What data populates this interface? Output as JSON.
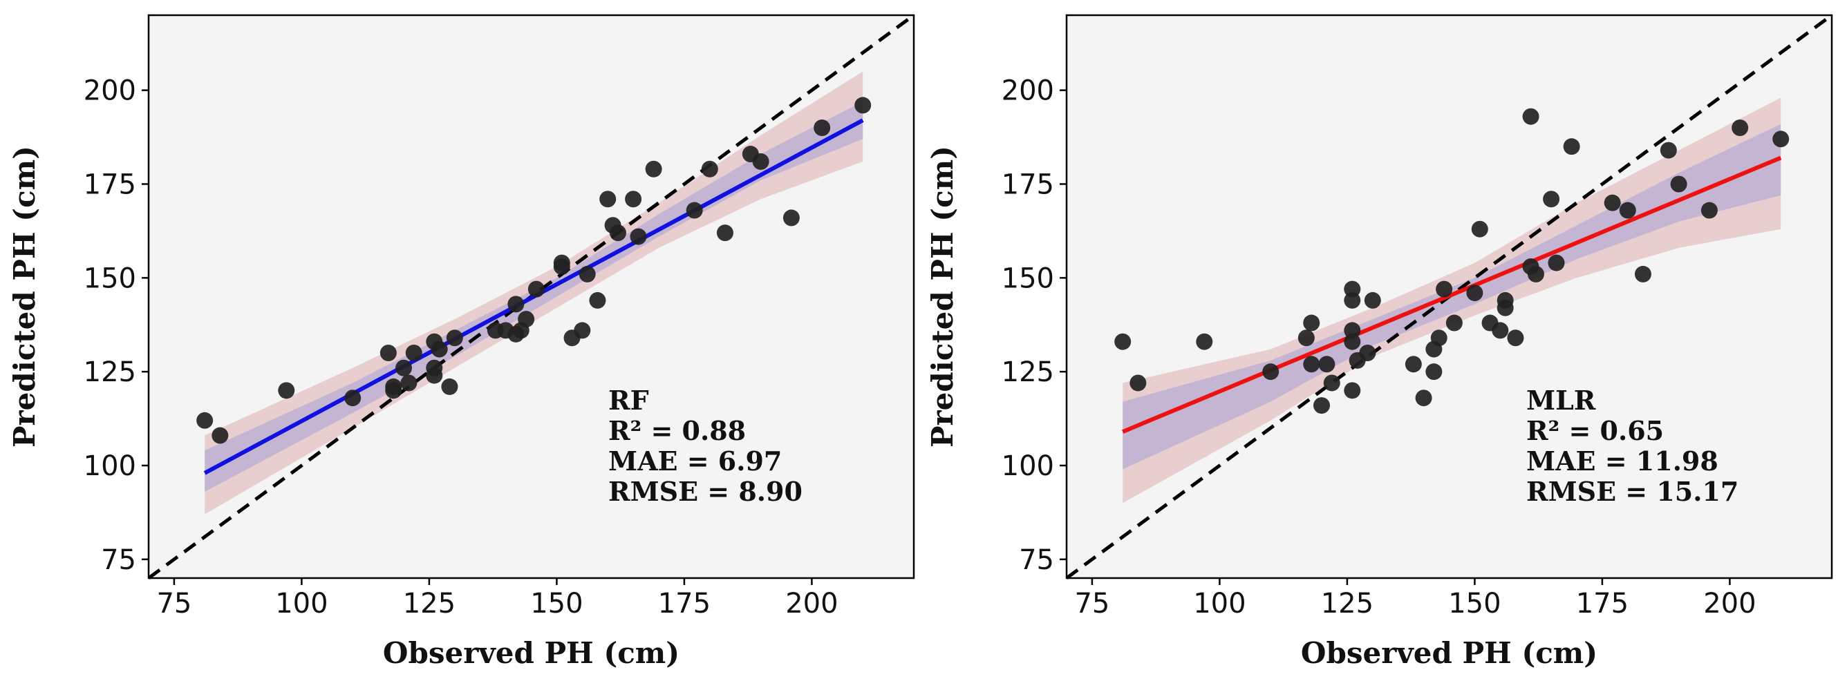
{
  "chart_data": [
    {
      "type": "scatter",
      "model": "RF",
      "xlabel": "Observed PH (cm)",
      "ylabel": "Predicted PH (cm)",
      "xlim": [
        70,
        220
      ],
      "ylim": [
        70,
        220
      ],
      "xticks": [
        75,
        100,
        125,
        150,
        175,
        200
      ],
      "yticks": [
        75,
        100,
        125,
        150,
        175,
        200
      ],
      "xtick_labels": [
        "75",
        "100",
        "125",
        "150",
        "175",
        "200"
      ],
      "ytick_labels": [
        "75",
        "100",
        "125",
        "150",
        "175",
        "200"
      ],
      "stats": [
        "RF",
        "R² = 0.88",
        "MAE = 6.97",
        "RMSE = 8.90"
      ],
      "fit_line": {
        "color": "#1010e0",
        "x": [
          81,
          210
        ],
        "y": [
          98,
          192
        ]
      },
      "confidence_band": {
        "x": [
          81,
          110,
          130,
          150,
          170,
          190,
          210
        ],
        "lower": [
          87,
          110,
          126,
          142,
          158,
          171,
          181
        ],
        "upper": [
          108,
          126,
          139,
          153,
          170,
          188,
          205
        ]
      },
      "prediction_band": {
        "x": [
          81,
          110,
          130,
          150,
          170,
          190,
          210
        ],
        "lower": [
          93,
          114,
          129,
          145,
          161,
          176,
          187
        ],
        "upper": [
          104,
          122,
          136,
          150,
          167,
          183,
          197
        ]
      },
      "identity_line": true,
      "marker_color": "#222222",
      "points": [
        {
          "x": 81,
          "y": 112
        },
        {
          "x": 84,
          "y": 108
        },
        {
          "x": 97,
          "y": 120
        },
        {
          "x": 110,
          "y": 118
        },
        {
          "x": 117,
          "y": 130
        },
        {
          "x": 118,
          "y": 121
        },
        {
          "x": 118,
          "y": 120
        },
        {
          "x": 120,
          "y": 126
        },
        {
          "x": 121,
          "y": 122
        },
        {
          "x": 122,
          "y": 130
        },
        {
          "x": 126,
          "y": 133
        },
        {
          "x": 126,
          "y": 126
        },
        {
          "x": 126,
          "y": 124
        },
        {
          "x": 127,
          "y": 131
        },
        {
          "x": 129,
          "y": 121
        },
        {
          "x": 130,
          "y": 134
        },
        {
          "x": 138,
          "y": 136
        },
        {
          "x": 140,
          "y": 136
        },
        {
          "x": 142,
          "y": 143
        },
        {
          "x": 142,
          "y": 135
        },
        {
          "x": 143,
          "y": 136
        },
        {
          "x": 144,
          "y": 139
        },
        {
          "x": 146,
          "y": 147
        },
        {
          "x": 151,
          "y": 153
        },
        {
          "x": 151,
          "y": 154
        },
        {
          "x": 153,
          "y": 134
        },
        {
          "x": 155,
          "y": 136
        },
        {
          "x": 156,
          "y": 151
        },
        {
          "x": 158,
          "y": 144
        },
        {
          "x": 160,
          "y": 171
        },
        {
          "x": 161,
          "y": 164
        },
        {
          "x": 162,
          "y": 162
        },
        {
          "x": 165,
          "y": 171
        },
        {
          "x": 166,
          "y": 161
        },
        {
          "x": 169,
          "y": 179
        },
        {
          "x": 177,
          "y": 168
        },
        {
          "x": 180,
          "y": 179
        },
        {
          "x": 183,
          "y": 162
        },
        {
          "x": 188,
          "y": 183
        },
        {
          "x": 190,
          "y": 181
        },
        {
          "x": 196,
          "y": 166
        },
        {
          "x": 202,
          "y": 190
        },
        {
          "x": 210,
          "y": 196
        }
      ]
    },
    {
      "type": "scatter",
      "model": "MLR",
      "xlabel": "Observed PH (cm)",
      "ylabel": "Predicted PH (cm)",
      "xlim": [
        70,
        220
      ],
      "ylim": [
        70,
        220
      ],
      "xticks": [
        75,
        100,
        125,
        150,
        175,
        200
      ],
      "yticks": [
        75,
        100,
        125,
        150,
        175,
        200
      ],
      "xtick_labels": [
        "75",
        "100",
        "125",
        "150",
        "175",
        "200"
      ],
      "ytick_labels": [
        "75",
        "100",
        "125",
        "150",
        "175",
        "200"
      ],
      "stats": [
        "MLR",
        "R² = 0.65",
        "MAE = 11.98",
        "RMSE = 15.17"
      ],
      "fit_line": {
        "color": "#ee1111",
        "x": [
          81,
          210
        ],
        "y": [
          109,
          182
        ]
      },
      "confidence_band": {
        "x": [
          81,
          110,
          130,
          150,
          170,
          190,
          210
        ],
        "lower": [
          90,
          112,
          129,
          140,
          150,
          158,
          163
        ],
        "upper": [
          122,
          131,
          142,
          154,
          170,
          184,
          198
        ]
      },
      "prediction_band": {
        "x": [
          81,
          110,
          130,
          150,
          170,
          190,
          210
        ],
        "lower": [
          99,
          117,
          132,
          143,
          155,
          165,
          172
        ],
        "upper": [
          117,
          128,
          139,
          150,
          164,
          178,
          191
        ]
      },
      "identity_line": true,
      "marker_color": "#222222",
      "points": [
        {
          "x": 81,
          "y": 133
        },
        {
          "x": 84,
          "y": 122
        },
        {
          "x": 97,
          "y": 133
        },
        {
          "x": 110,
          "y": 125
        },
        {
          "x": 117,
          "y": 134
        },
        {
          "x": 118,
          "y": 138
        },
        {
          "x": 118,
          "y": 127
        },
        {
          "x": 120,
          "y": 116
        },
        {
          "x": 121,
          "y": 127
        },
        {
          "x": 122,
          "y": 122
        },
        {
          "x": 126,
          "y": 147
        },
        {
          "x": 126,
          "y": 144
        },
        {
          "x": 126,
          "y": 136
        },
        {
          "x": 126,
          "y": 133
        },
        {
          "x": 126,
          "y": 120
        },
        {
          "x": 127,
          "y": 128
        },
        {
          "x": 129,
          "y": 130
        },
        {
          "x": 130,
          "y": 144
        },
        {
          "x": 138,
          "y": 127
        },
        {
          "x": 140,
          "y": 118
        },
        {
          "x": 142,
          "y": 131
        },
        {
          "x": 142,
          "y": 125
        },
        {
          "x": 143,
          "y": 134
        },
        {
          "x": 144,
          "y": 147
        },
        {
          "x": 146,
          "y": 138
        },
        {
          "x": 150,
          "y": 146
        },
        {
          "x": 151,
          "y": 163
        },
        {
          "x": 153,
          "y": 138
        },
        {
          "x": 155,
          "y": 136
        },
        {
          "x": 156,
          "y": 144
        },
        {
          "x": 156,
          "y": 142
        },
        {
          "x": 158,
          "y": 134
        },
        {
          "x": 161,
          "y": 193
        },
        {
          "x": 161,
          "y": 153
        },
        {
          "x": 162,
          "y": 151
        },
        {
          "x": 165,
          "y": 171
        },
        {
          "x": 166,
          "y": 154
        },
        {
          "x": 169,
          "y": 185
        },
        {
          "x": 177,
          "y": 170
        },
        {
          "x": 180,
          "y": 168
        },
        {
          "x": 183,
          "y": 151
        },
        {
          "x": 188,
          "y": 184
        },
        {
          "x": 190,
          "y": 175
        },
        {
          "x": 196,
          "y": 168
        },
        {
          "x": 202,
          "y": 190
        },
        {
          "x": 210,
          "y": 187
        }
      ]
    }
  ]
}
